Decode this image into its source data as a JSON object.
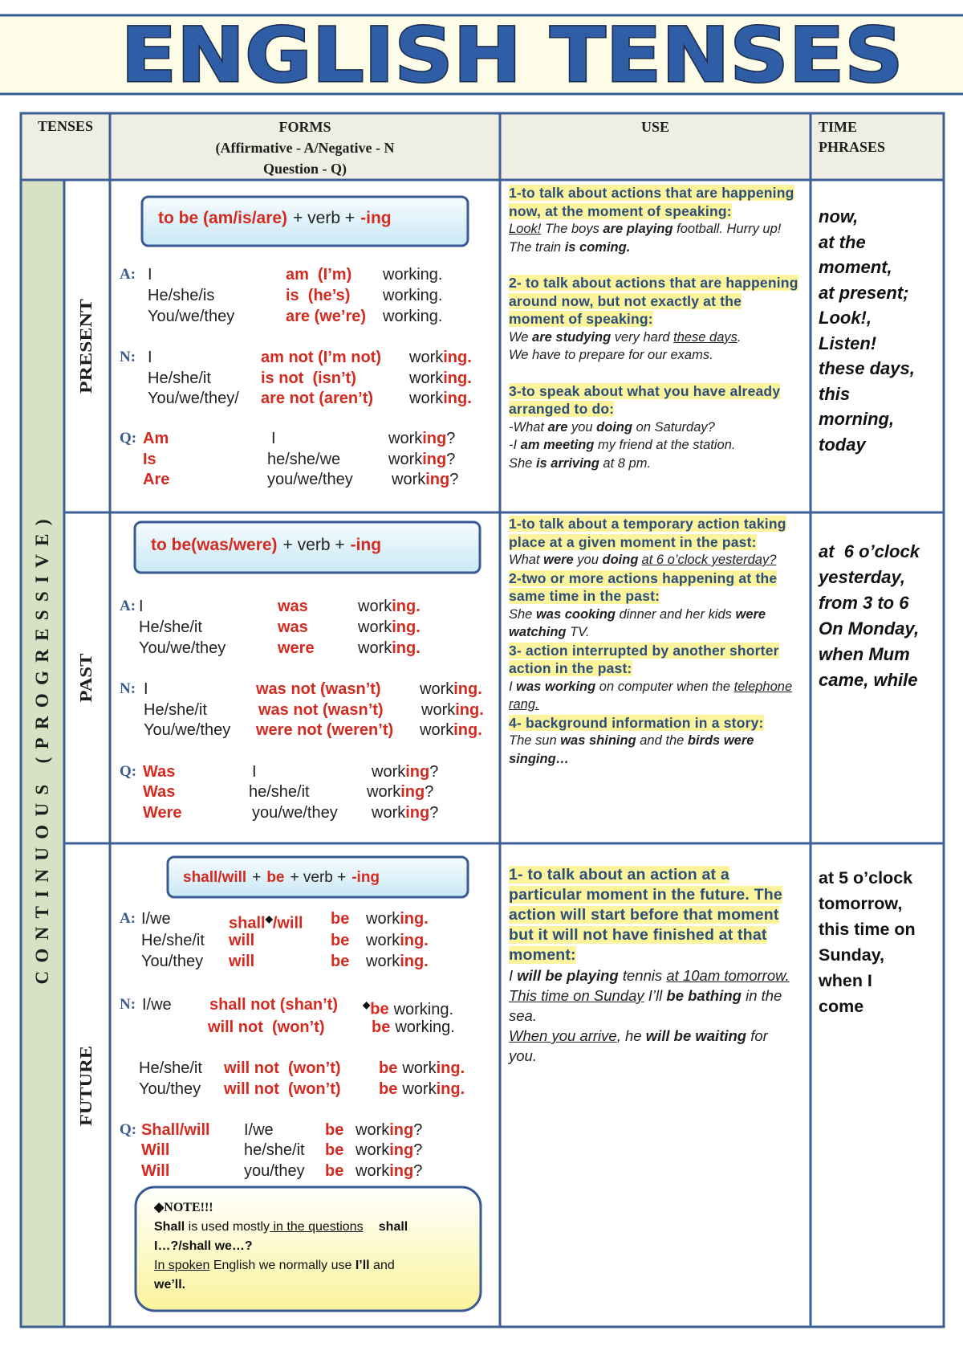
{
  "header": {
    "title": "ENGLISH TENSES"
  },
  "table": {
    "columns": {
      "tenses": "TENSES",
      "forms": [
        "FORMS",
        "(Affirmative - A/Negative - N",
        "Question - Q)"
      ],
      "use": "USE",
      "time_phrases": [
        "TIME",
        "PHRASES"
      ]
    },
    "group": "CONTINUOUS (PROGRESSIVE)",
    "rows": [
      {
        "tense": "PRESENT",
        "formula": [
          "to be (am/is/are)",
          "+ verb +",
          "-ing"
        ],
        "forms": [
          {
            "label": "A:",
            "lines": [
              [
                "I",
                "am  (I’m)",
                "working."
              ],
              [
                "He/she/is",
                "is  (he’s)",
                "working."
              ],
              [
                "You/we/they",
                "are (we’re)",
                "working."
              ]
            ]
          },
          {
            "label": "N:",
            "lines": [
              [
                "I",
                "am not (I’m not)",
                "work",
                "ing."
              ],
              [
                "He/she/it",
                "is not  (isn’t)",
                "work",
                "ing."
              ],
              [
                "You/we/they/",
                "are not (aren’t)",
                "work",
                "ing."
              ]
            ]
          },
          {
            "label": "Q:",
            "lines": [
              [
                "Am",
                "I",
                "work",
                "ing",
                "?"
              ],
              [
                "Is",
                "he/she/we",
                "work",
                "ing",
                "?"
              ],
              [
                "Are",
                "you/we/they",
                "work",
                "ing",
                "?"
              ]
            ]
          }
        ],
        "use": [
          {
            "heading": "1-to talk about  actions that are happening now, at the moment of speaking:",
            "examples": [
              [
                "Look!",
                " The boys ",
                "are playing",
                " football.  Hurry up! The train ",
                "is coming."
              ]
            ]
          },
          {
            "heading": "2- to talk about actions that are happening around now, but not exactly at  the moment of speaking:",
            "examples": [
              [
                "We ",
                "are studying",
                " very hard ",
                "these days",
                "."
              ],
              [
                "We have to prepare for our exams."
              ]
            ]
          },
          {
            "heading": "3-to speak about what you have already arranged to do:",
            "examples": [
              [
                "-What ",
                "are",
                " you ",
                "doing",
                " on Saturday?"
              ],
              [
                "-I ",
                "am meeting",
                " my  friend at the station."
              ],
              [
                "She ",
                "is arriving",
                " at 8 pm."
              ]
            ]
          }
        ],
        "time_phrases": [
          "now,",
          "at the",
          "moment,",
          "at present;",
          "Look!,",
          "Listen!",
          "these days,",
          "this",
          "morning,",
          "today"
        ]
      },
      {
        "tense": "PAST",
        "formula": [
          "to be(was/were)",
          "+ verb +",
          "-ing"
        ],
        "forms": [
          {
            "label": "A:",
            "lines": [
              [
                "I",
                "was",
                "work",
                "ing."
              ],
              [
                "He/she/it",
                "was",
                "work",
                "ing."
              ],
              [
                "You/we/they",
                "were",
                "work",
                "ing."
              ]
            ]
          },
          {
            "label": "N:",
            "lines": [
              [
                "I",
                "was not (wasn’t)",
                "work",
                "ing."
              ],
              [
                "He/she/it",
                "was not (wasn’t)",
                "work",
                "ing."
              ],
              [
                "You/we/they",
                "were not (weren’t)",
                "work",
                "ing."
              ]
            ]
          },
          {
            "label": "Q:",
            "lines": [
              [
                "Was",
                "I",
                "work",
                "ing",
                "?"
              ],
              [
                "Was",
                "he/she/it",
                "work",
                "ing",
                "?"
              ],
              [
                "Were",
                "you/we/they",
                "work",
                "ing",
                "?"
              ]
            ]
          }
        ],
        "use": [
          {
            "heading": "1-to talk about a temporary action taking place at a given moment in the past:",
            "examples": [
              [
                "What ",
                "were",
                " you ",
                "doing",
                "at 6 o’clock yesterday?"
              ]
            ]
          },
          {
            "heading": "2-two or more actions happening at the same time in the past:",
            "examples": [
              [
                "She ",
                "was cooking",
                " dinner and her kids ",
                "were watching",
                " TV."
              ]
            ]
          },
          {
            "heading": "3- action interrupted by another shorter action in the past:",
            "examples": [
              [
                "I ",
                "was working",
                " on computer when the ",
                "telephone rang."
              ]
            ]
          },
          {
            "heading": "4- background information in a story:",
            "examples": [
              [
                "The sun ",
                "was shining",
                " and the ",
                "birds were singing…"
              ]
            ]
          }
        ],
        "time_phrases": [
          "at  6 o’clock",
          "yesterday,",
          "from 3 to 6",
          "On Monday,",
          "when Mum",
          "came, while"
        ]
      },
      {
        "tense": "FUTURE",
        "formula": [
          "shall/will",
          "+",
          "be",
          "+ verb +",
          "-ing"
        ],
        "forms": [
          {
            "label": "A:",
            "lines": [
              [
                "I/we",
                "shall",
                "◆",
                "/will",
                "be",
                "work",
                "ing."
              ],
              [
                "He/she/it",
                "will",
                "be",
                "work",
                "ing."
              ],
              [
                "You/they",
                "will",
                "be",
                "work",
                "ing."
              ]
            ]
          },
          {
            "label": "N:",
            "lines": [
              [
                "I/we",
                "shall not (shan’t)",
                "◆",
                "be",
                "working."
              ],
              [
                "will not  (won’t)",
                "be",
                "working."
              ],
              [
                "He/she/it",
                "will not  (won’t)",
                "be",
                "work",
                "ing."
              ],
              [
                "You/they",
                "will not  (won’t)",
                "be",
                "work",
                "ing."
              ]
            ]
          },
          {
            "label": "Q:",
            "lines": [
              [
                "Shall/will",
                "I/we",
                "be",
                "work",
                "ing",
                "?"
              ],
              [
                "Will",
                "he/she/it",
                "be",
                "work",
                "ing",
                "?"
              ],
              [
                "Will",
                "you/they",
                "be",
                "work",
                "ing",
                "?"
              ]
            ]
          }
        ],
        "use": [
          {
            "heading": "1- to talk about an action at a particular moment in the future. The action will start before that moment but it will not have finished at that moment:",
            "examples": [
              [
                "I ",
                "will be playing",
                " tennis ",
                "at 10am tomorrow."
              ],
              [
                "This time on Sunday",
                " I’ll ",
                "be bathing",
                " in the sea."
              ],
              [
                "When you arrive",
                ", he ",
                "will be waiting",
                " for you."
              ]
            ]
          }
        ],
        "time_phrases": [
          "at 5 o’clock",
          "tomorrow,",
          "this time on",
          "Sunday,",
          "when I",
          "come"
        ]
      }
    ],
    "note": {
      "title": "◆NOTE!!!",
      "lines": [
        [
          "Shall",
          " is used mostly",
          " in the questions",
          "shall"
        ],
        [
          "I…?/shall we…?"
        ],
        [
          "In spoken",
          " English we normally use ",
          "I’ll",
          " and"
        ],
        [
          "we’ll."
        ]
      ]
    }
  }
}
